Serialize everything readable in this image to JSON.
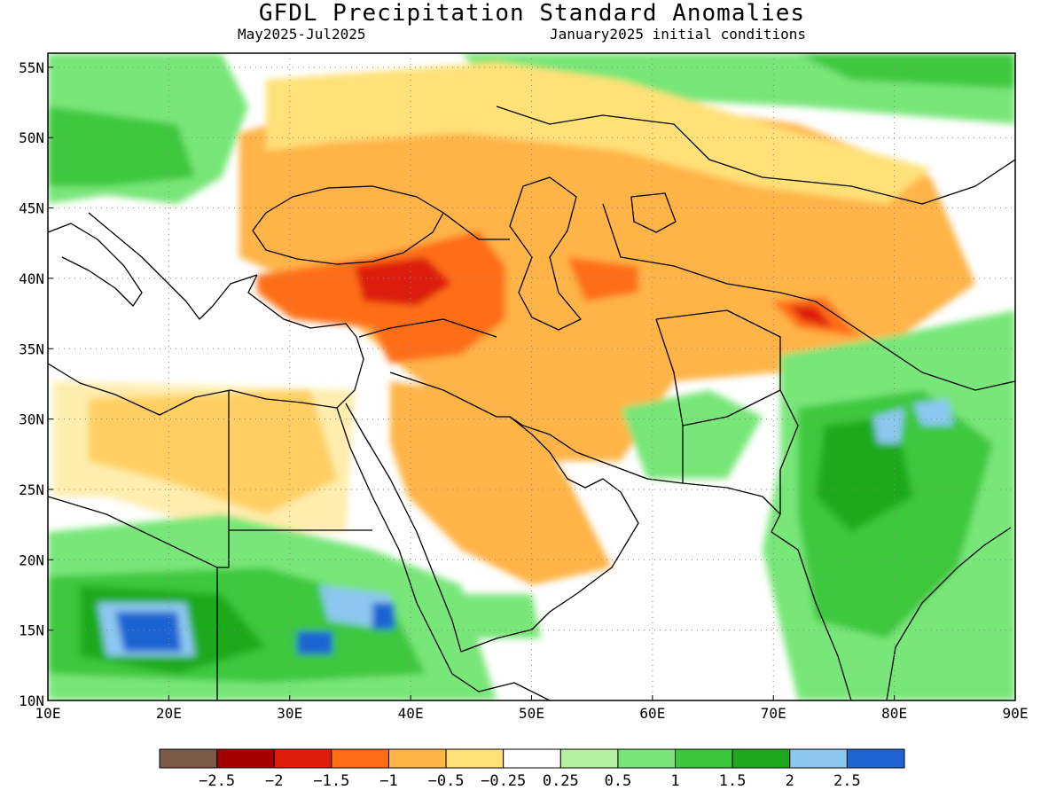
{
  "header": {
    "title": "GFDL Precipitation Standard Anomalies",
    "period": "May2025-Jul2025",
    "initial_conditions": "January2025 initial conditions"
  },
  "map": {
    "lon_range": [
      10,
      90
    ],
    "lat_range": [
      10,
      56
    ],
    "lon_ticks": [
      {
        "value": 10,
        "label": "10E"
      },
      {
        "value": 20,
        "label": "20E"
      },
      {
        "value": 30,
        "label": "30E"
      },
      {
        "value": 40,
        "label": "40E"
      },
      {
        "value": 50,
        "label": "50E"
      },
      {
        "value": 60,
        "label": "60E"
      },
      {
        "value": 70,
        "label": "70E"
      },
      {
        "value": 80,
        "label": "80E"
      },
      {
        "value": 90,
        "label": "90E"
      }
    ],
    "lat_ticks": [
      {
        "value": 10,
        "label": "10N"
      },
      {
        "value": 15,
        "label": "15N"
      },
      {
        "value": 20,
        "label": "20N"
      },
      {
        "value": 25,
        "label": "25N"
      },
      {
        "value": 30,
        "label": "30N"
      },
      {
        "value": 35,
        "label": "35N"
      },
      {
        "value": 40,
        "label": "40N"
      },
      {
        "value": 45,
        "label": "45N"
      },
      {
        "value": 50,
        "label": "50N"
      },
      {
        "value": 55,
        "label": "55N"
      }
    ],
    "grid": true
  },
  "colorbar": {
    "colors": [
      "#7b5a4a",
      "#a50000",
      "#dc1e0a",
      "#ff6e14",
      "#ffb446",
      "#ffe178",
      "#ffffff",
      "#b4f0a0",
      "#78e678",
      "#3cc83c",
      "#1eaa1e",
      "#8cc8f0",
      "#1e64d2"
    ],
    "labels": [
      "−2.5",
      "−2",
      "−1.5",
      "−1",
      "−0.5",
      "−0.25",
      "0.25",
      "0.5",
      "1",
      "1.5",
      "2",
      "2.5"
    ]
  }
}
